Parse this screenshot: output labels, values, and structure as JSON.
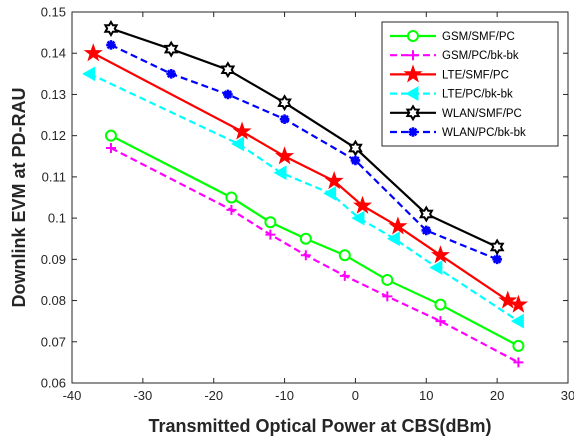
{
  "chart_data": {
    "type": "line",
    "xlabel": "Transmitted Optical Power at CBS(dBm)",
    "ylabel": "Downlink EVM at PD-RAU",
    "xlim": [
      -40,
      30
    ],
    "ylim": [
      0.06,
      0.15
    ],
    "xticks": [
      "-40",
      "-30",
      "-20",
      "-10",
      "0",
      "10",
      "20",
      "30"
    ],
    "yticks": [
      "0.06",
      "0.07",
      "0.08",
      "0.09",
      "0.1",
      "0.11",
      "0.12",
      "0.13",
      "0.14",
      "0.15"
    ],
    "legend_position": "top-right",
    "grid": false,
    "series": [
      {
        "name": "GSM/SMF/PC",
        "color": "#00ff00",
        "line": "solid",
        "marker": "circle",
        "x": [
          -34.5,
          -17.5,
          -12,
          -7,
          -1.5,
          4.5,
          12,
          23
        ],
        "y": [
          0.12,
          0.105,
          0.099,
          0.095,
          0.091,
          0.085,
          0.079,
          0.069
        ]
      },
      {
        "name": "GSM/PC/bk-bk",
        "color": "#ff00ff",
        "line": "dashed",
        "marker": "plus",
        "x": [
          -34.5,
          -17.5,
          -12,
          -7,
          -1.5,
          4.5,
          12,
          23
        ],
        "y": [
          0.117,
          0.102,
          0.096,
          0.091,
          0.086,
          0.081,
          0.075,
          0.065
        ]
      },
      {
        "name": "LTE/SMF/PC",
        "color": "#ff0000",
        "line": "solid",
        "marker": "star",
        "x": [
          -37,
          -16,
          -10,
          -3,
          1,
          6,
          12,
          21.5,
          23
        ],
        "y": [
          0.14,
          0.121,
          0.115,
          0.109,
          0.103,
          0.098,
          0.091,
          0.08,
          0.079
        ]
      },
      {
        "name": "LTE/PC/bk-bk",
        "color": "#00ffff",
        "line": "dashed",
        "marker": "triangle-left",
        "x": [
          -37.5,
          -16.5,
          -10.5,
          -3.5,
          0.5,
          5.5,
          11.5,
          23
        ],
        "y": [
          0.135,
          0.118,
          0.111,
          0.106,
          0.1,
          0.095,
          0.088,
          0.075
        ]
      },
      {
        "name": "WLAN/SMF/PC",
        "color": "#000000",
        "line": "solid",
        "marker": "hexagram",
        "x": [
          -34.5,
          -26,
          -18,
          -10,
          0,
          10,
          20
        ],
        "y": [
          0.146,
          0.141,
          0.136,
          0.128,
          0.117,
          0.101,
          0.093
        ]
      },
      {
        "name": "WLAN/PC/bk-bk",
        "color": "#0000ff",
        "line": "dashed",
        "marker": "asterisk",
        "x": [
          -34.5,
          -26,
          -18,
          -10,
          0,
          10,
          20
        ],
        "y": [
          0.142,
          0.135,
          0.13,
          0.124,
          0.114,
          0.097,
          0.09
        ]
      }
    ]
  }
}
